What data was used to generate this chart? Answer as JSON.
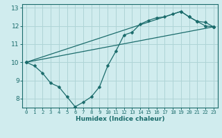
{
  "xlabel": "Humidex (Indice chaleur)",
  "background_color": "#d0ecee",
  "grid_color": "#aed4d6",
  "line_color": "#1a6b6b",
  "xlim": [
    -0.5,
    23.5
  ],
  "ylim": [
    7.5,
    13.2
  ],
  "xticks": [
    0,
    1,
    2,
    3,
    4,
    5,
    6,
    7,
    8,
    9,
    10,
    11,
    12,
    13,
    14,
    15,
    16,
    17,
    18,
    19,
    20,
    21,
    22,
    23
  ],
  "yticks": [
    8,
    9,
    10,
    11,
    12,
    13
  ],
  "curve1_x": [
    0,
    1,
    2,
    3,
    4,
    5,
    6,
    7,
    8,
    9,
    10,
    11,
    12,
    13,
    14,
    15,
    16,
    17,
    18,
    19,
    20,
    21,
    22,
    23
  ],
  "curve1_y": [
    10.0,
    9.8,
    9.4,
    8.85,
    8.65,
    8.1,
    7.55,
    7.8,
    8.1,
    8.65,
    9.8,
    10.6,
    11.5,
    11.65,
    12.1,
    12.3,
    12.45,
    12.5,
    12.65,
    12.8,
    12.5,
    12.25,
    12.0,
    11.95
  ],
  "curve2_x": [
    0,
    23
  ],
  "curve2_y": [
    10.0,
    11.95
  ],
  "curve3_x": [
    0,
    19,
    20,
    21,
    22,
    23
  ],
  "curve3_y": [
    10.0,
    12.8,
    12.5,
    12.25,
    12.2,
    11.95
  ]
}
